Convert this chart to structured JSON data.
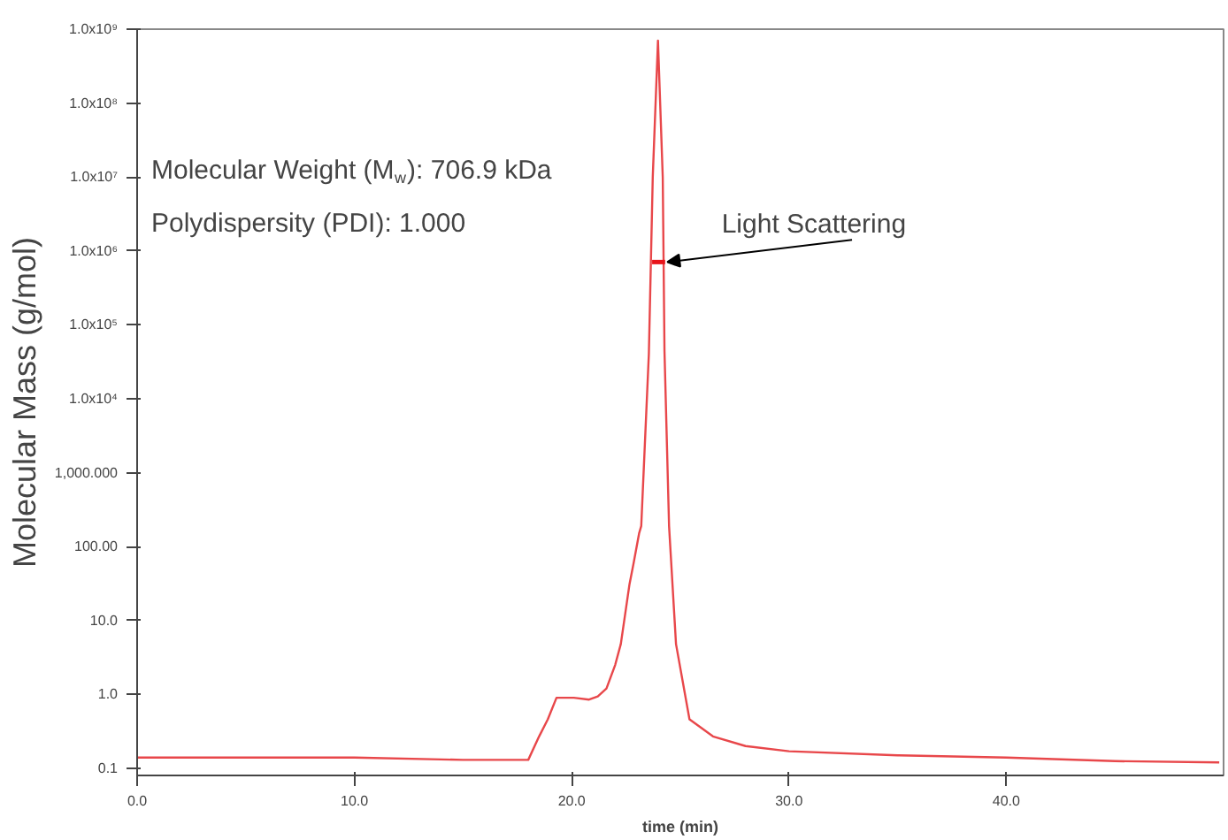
{
  "chart_data": {
    "type": "line",
    "xlabel": "time (min)",
    "ylabel": "Molecular Mass (g/mol)",
    "log": "y",
    "grid": false,
    "marker": "none",
    "line_style": "solid",
    "xlim": [
      0,
      50
    ],
    "ylim": [
      0.08,
      1000000000
    ],
    "xticks": [
      {
        "value": 0,
        "label": "0.0"
      },
      {
        "value": 10,
        "label": "10.0"
      },
      {
        "value": 20,
        "label": "20.0"
      },
      {
        "value": 30,
        "label": "30.0"
      },
      {
        "value": 40,
        "label": "40.0"
      }
    ],
    "yticks": [
      {
        "value": 0.1,
        "label": "0.1"
      },
      {
        "value": 1,
        "label": "1.0"
      },
      {
        "value": 10,
        "label": "10.0"
      },
      {
        "value": 100,
        "label": "100.00"
      },
      {
        "value": 1000,
        "label": "1,000.000"
      },
      {
        "value": 10000,
        "label": "1.0x10⁴"
      },
      {
        "value": 100000,
        "label": "1.0x10⁵"
      },
      {
        "value": 1000000,
        "label": "1.0x10⁶"
      },
      {
        "value": 10000000,
        "label": "1.0x10⁷"
      },
      {
        "value": 100000000,
        "label": "1.0x10⁸"
      },
      {
        "value": 1000000000,
        "label": "1.0x10⁹"
      }
    ],
    "series": [
      {
        "color": "#e8474a",
        "x": [
          0,
          5,
          10,
          15,
          18,
          18.5,
          18.9,
          19.3,
          20.1,
          20.8,
          21.2,
          21.6,
          22.0,
          22.26,
          22.66,
          22.85,
          23.1,
          23.2,
          23.55,
          23.73,
          23.97,
          24.19,
          24.27,
          24.48,
          24.8,
          25.42,
          26.5,
          28,
          30,
          35,
          40,
          45,
          49.8
        ],
        "values": [
          0.14,
          0.14,
          0.14,
          0.13,
          0.13,
          0.27,
          0.46,
          0.9,
          0.9,
          0.85,
          0.94,
          1.2,
          2.5,
          4.8,
          31,
          60,
          150,
          190,
          40000,
          10000000,
          700000000,
          10000000,
          44000,
          190,
          4.8,
          0.46,
          0.27,
          0.2,
          0.17,
          0.15,
          0.14,
          0.125,
          0.12
        ]
      },
      {
        "color": "#e8141a",
        "x": [
          23.7,
          24.3
        ],
        "values": [
          707000,
          707000
        ]
      }
    ],
    "annotations": [
      "Molecular Weight (M$_{w}$): 706.9 kDa",
      "Polydispersity (PDI): 1.000",
      {
        "text": "Light Scattering",
        "x": 24.4,
        "y": 707000
      }
    ]
  }
}
